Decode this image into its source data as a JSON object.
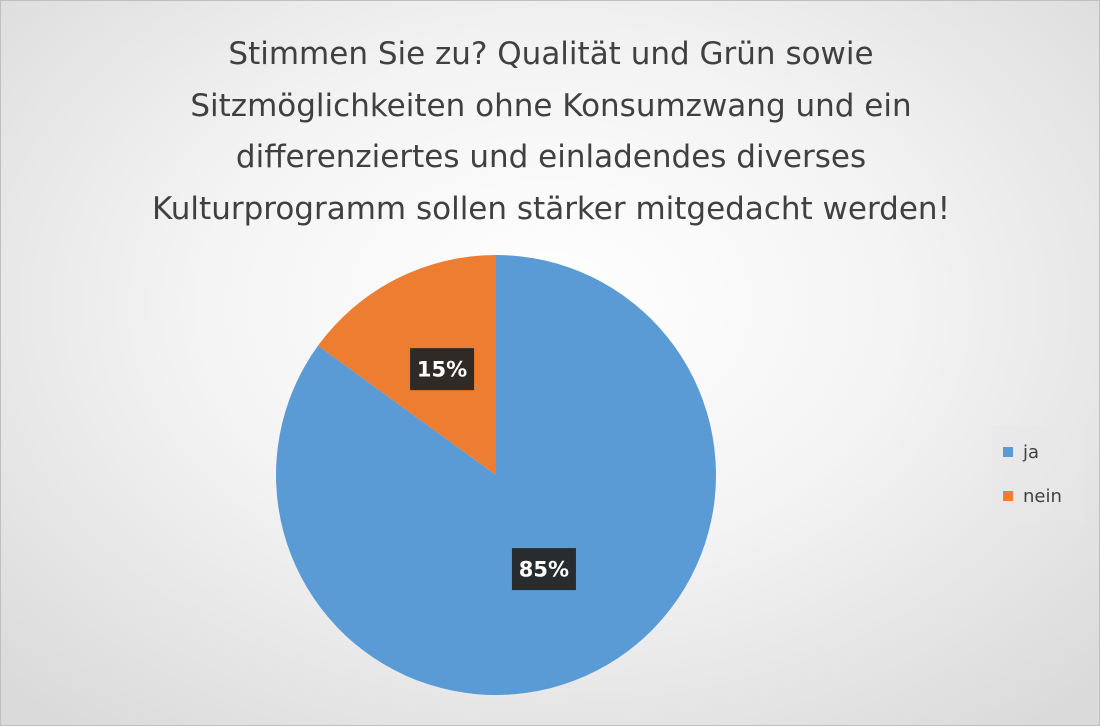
{
  "chart_data": {
    "type": "pie",
    "title": "Stimmen Sie zu? Qualität und Grün sowie Sitzmöglichkeiten ohne Konsumzwang und ein differenziertes und einladendes diverses Kulturprogramm sollen stärker mitgedacht werden!",
    "title_lines": [
      "Stimmen Sie zu? Qualität und Grün sowie",
      "Sitzmöglichkeiten ohne Konsumzwang und ein",
      "differenziertes und einladendes diverses",
      "Kulturprogramm sollen stärker mitgedacht werden!"
    ],
    "categories": [
      "ja",
      "nein"
    ],
    "values": [
      85,
      15
    ],
    "data_labels": [
      "85%",
      "15%"
    ],
    "colors": [
      "#5b9bd5",
      "#ed7d31"
    ],
    "legend": {
      "position": "right",
      "entries": [
        "ja",
        "nein"
      ]
    }
  }
}
